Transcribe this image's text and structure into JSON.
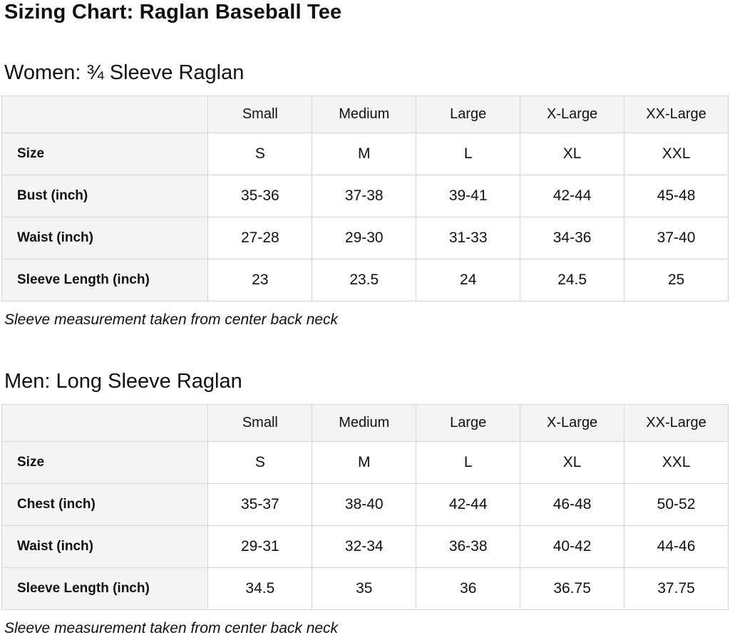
{
  "page": {
    "title": "Sizing Chart: Raglan Baseball Tee"
  },
  "colors": {
    "text": "#0f1111",
    "table_border": "#d5d5d5",
    "header_cell_bg": "#f4f4f4",
    "data_cell_bg": "#ffffff"
  },
  "sections": [
    {
      "heading": "Women: ¾ Sleeve Raglan",
      "footnote": "Sleeve measurement taken from center back neck",
      "table": {
        "column_headers": [
          "",
          "Small",
          "Medium",
          "Large",
          "X-Large",
          "XX-Large"
        ],
        "rows": [
          {
            "label": "Size",
            "values": [
              "S",
              "M",
              "L",
              "XL",
              "XXL"
            ]
          },
          {
            "label": "Bust (inch)",
            "values": [
              "35-36",
              "37-38",
              "39-41",
              "42-44",
              "45-48"
            ]
          },
          {
            "label": "Waist (inch)",
            "values": [
              "27-28",
              "29-30",
              "31-33",
              "34-36",
              "37-40"
            ]
          },
          {
            "label": "Sleeve Length (inch)",
            "values": [
              "23",
              "23.5",
              "24",
              "24.5",
              "25"
            ]
          }
        ]
      }
    },
    {
      "heading": "Men: Long Sleeve Raglan",
      "footnote": "Sleeve measurement taken from center back neck",
      "table": {
        "column_headers": [
          "",
          "Small",
          "Medium",
          "Large",
          "X-Large",
          "XX-Large"
        ],
        "rows": [
          {
            "label": "Size",
            "values": [
              "S",
              "M",
              "L",
              "XL",
              "XXL"
            ]
          },
          {
            "label": "Chest (inch)",
            "values": [
              "35-37",
              "38-40",
              "42-44",
              "46-48",
              "50-52"
            ]
          },
          {
            "label": "Waist (inch)",
            "values": [
              "29-31",
              "32-34",
              "36-38",
              "40-42",
              "44-46"
            ]
          },
          {
            "label": "Sleeve Length (inch)",
            "values": [
              "34.5",
              "35",
              "36",
              "36.75",
              "37.75"
            ]
          }
        ]
      }
    }
  ]
}
